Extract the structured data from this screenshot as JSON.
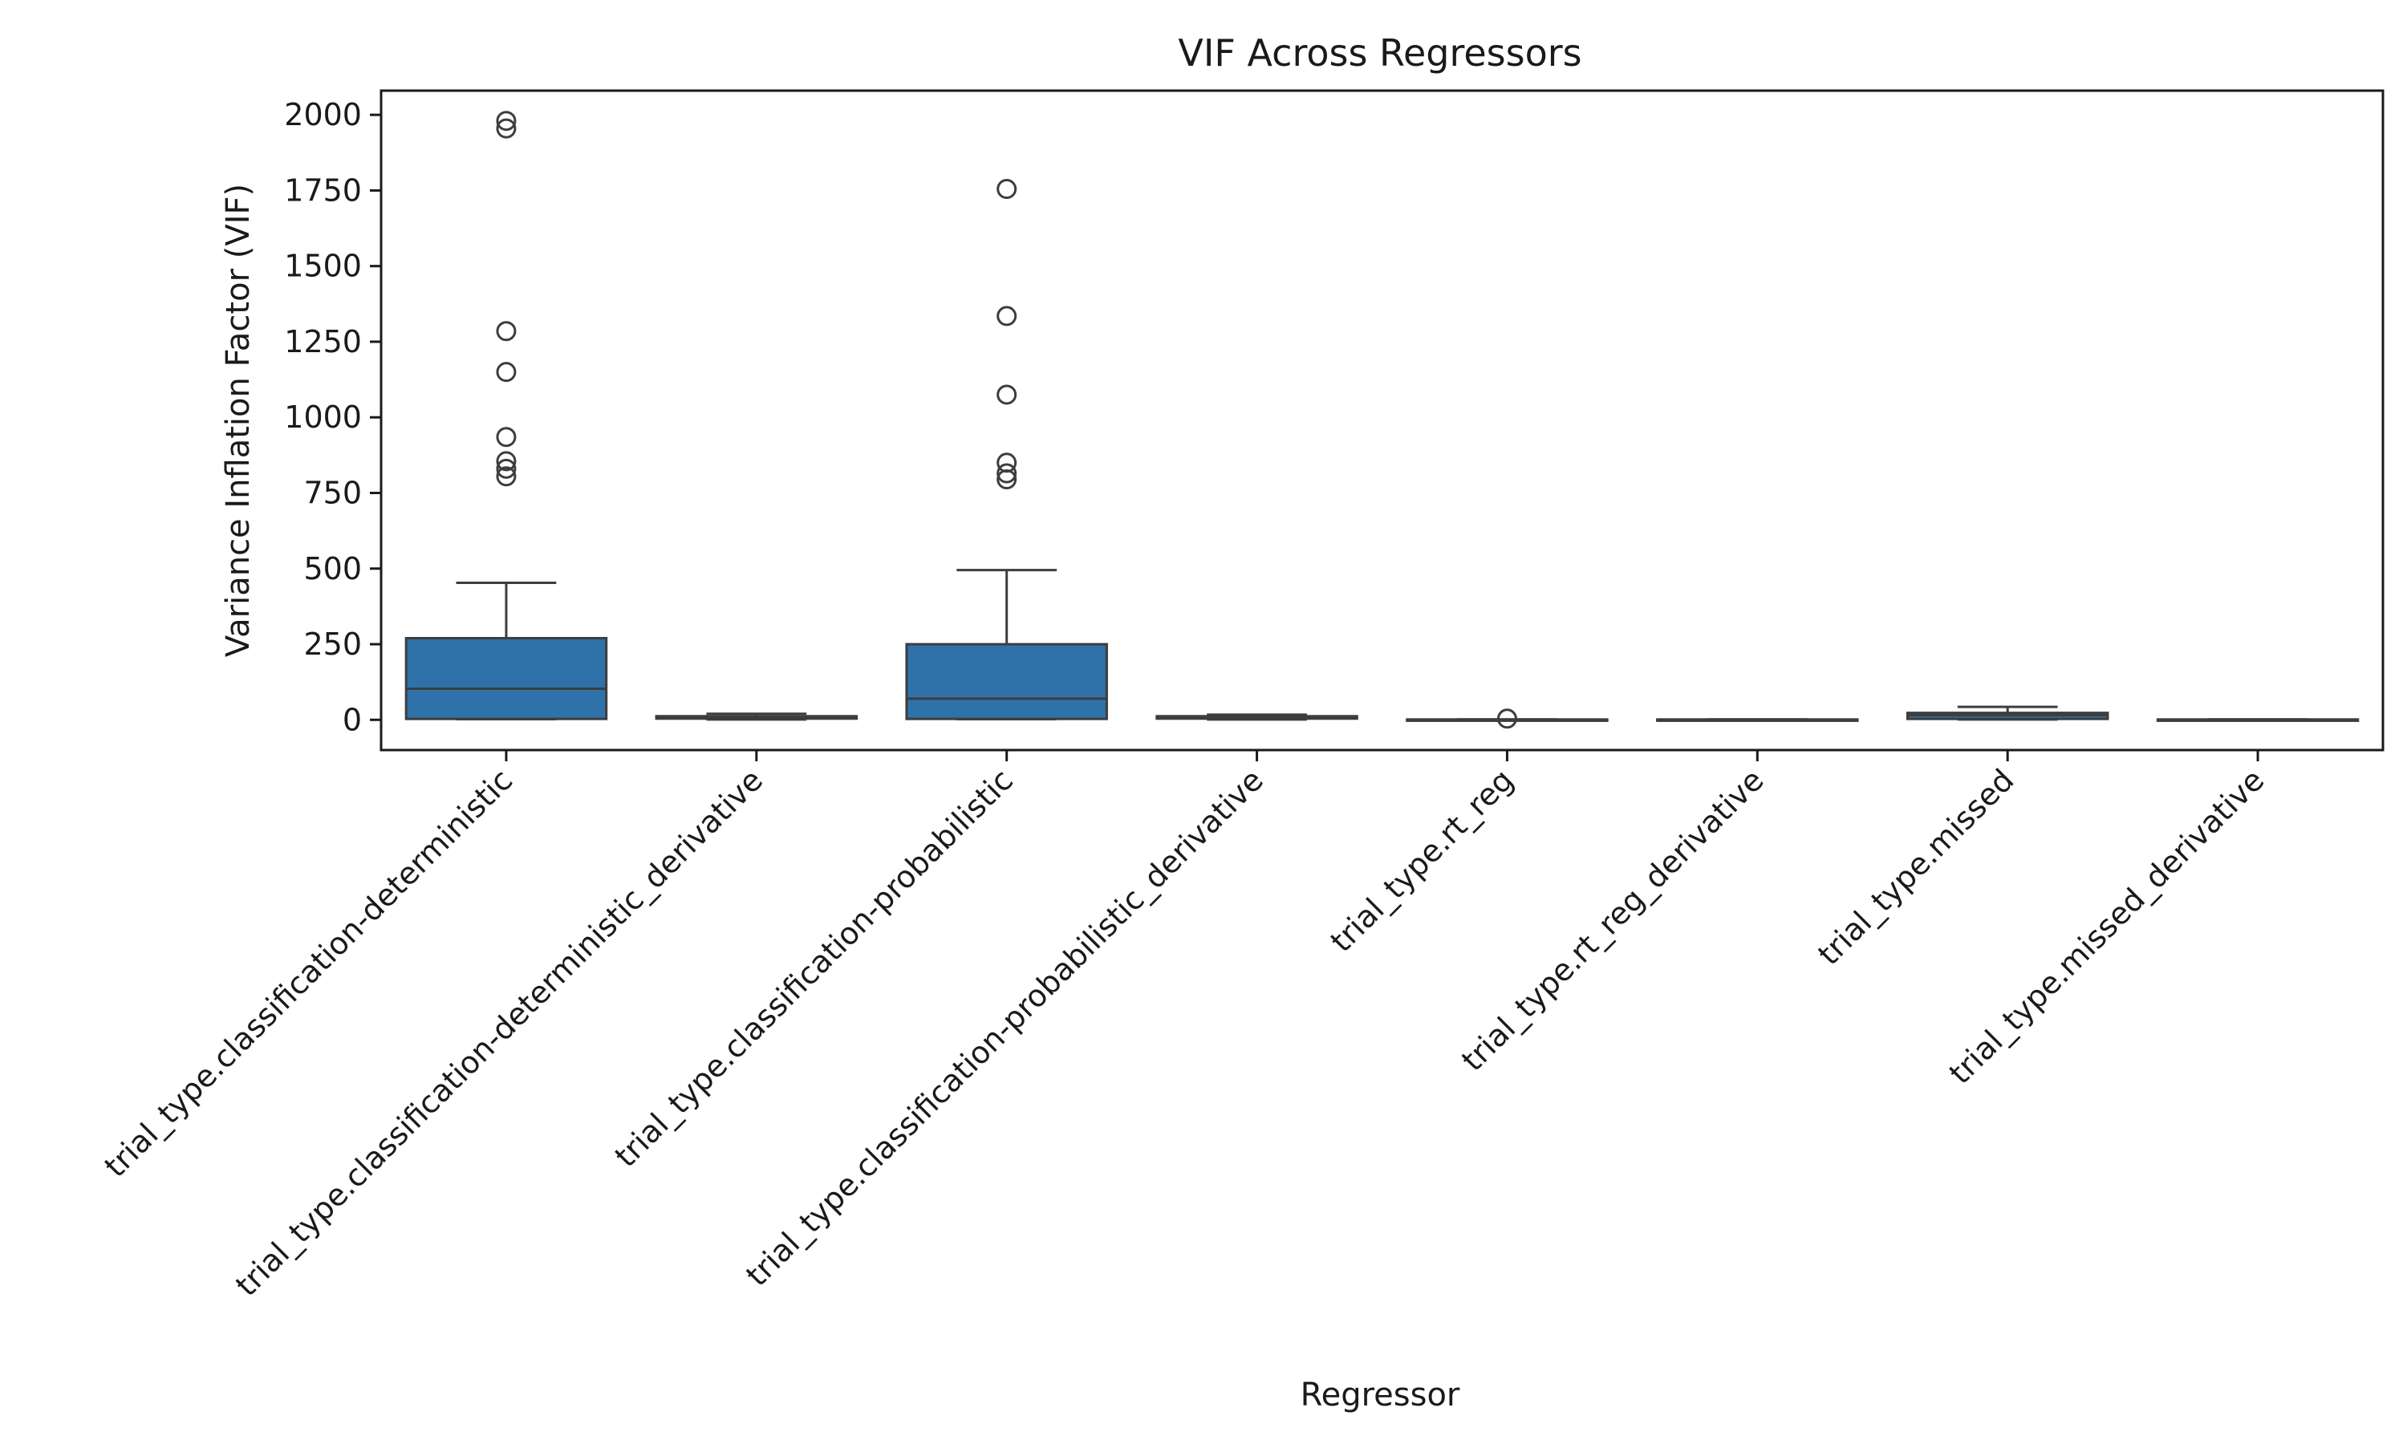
{
  "chart_data": {
    "type": "box",
    "title": "VIF Across Regressors",
    "xlabel": "Regressor",
    "ylabel": "Variance Inflation Factor (VIF)",
    "ylim": [
      -100,
      2080
    ],
    "yticks": [
      0,
      250,
      500,
      750,
      1000,
      1250,
      1500,
      1750,
      2000
    ],
    "grid": false,
    "box_color": "#2e72a9",
    "categories": [
      "trial_type.classification-deterministic",
      "trial_type.classification-deterministic_derivative",
      "trial_type.classification-probabilistic",
      "trial_type.classification-probabilistic_derivative",
      "trial_type.rt_reg",
      "trial_type.rt_reg_derivative",
      "trial_type.missed",
      "trial_type.missed_derivative"
    ],
    "boxes": [
      {
        "whisker_low": 2,
        "q1": 3,
        "median": 103,
        "q3": 270,
        "whisker_high": 453,
        "outliers": [
          1980,
          1955,
          1285,
          1150,
          935,
          855,
          830,
          805
        ]
      },
      {
        "whisker_low": 1,
        "q1": 4,
        "median": 8,
        "q3": 12,
        "whisker_high": 20,
        "outliers": []
      },
      {
        "whisker_low": 2,
        "q1": 3,
        "median": 70,
        "q3": 250,
        "whisker_high": 495,
        "outliers": [
          1755,
          1335,
          1075,
          850,
          815,
          795
        ]
      },
      {
        "whisker_low": 1,
        "q1": 4,
        "median": 8,
        "q3": 12,
        "whisker_high": 17,
        "outliers": []
      },
      {
        "whisker_low": 1,
        "q1": 1,
        "median": 1,
        "q3": 1,
        "whisker_high": 1,
        "outliers": [
          4
        ]
      },
      {
        "whisker_low": 1,
        "q1": 1,
        "median": 1,
        "q3": 1,
        "whisker_high": 1,
        "outliers": []
      },
      {
        "whisker_low": 1,
        "q1": 3,
        "median": 15,
        "q3": 23,
        "whisker_high": 43,
        "outliers": []
      },
      {
        "whisker_low": 1,
        "q1": 1,
        "median": 1,
        "q3": 1,
        "whisker_high": 1,
        "outliers": []
      }
    ]
  }
}
